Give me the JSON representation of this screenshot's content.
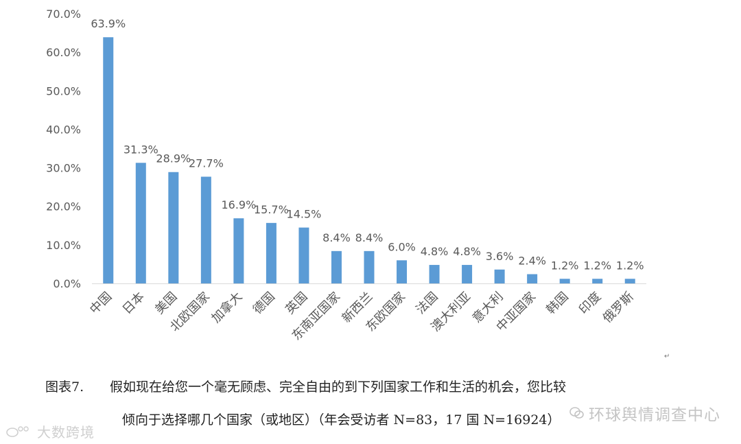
{
  "chart_data": {
    "type": "bar",
    "categories": [
      "中国",
      "日本",
      "美国",
      "北欧国家",
      "加拿大",
      "德国",
      "英国",
      "东南亚国家",
      "新西兰",
      "东欧国家",
      "法国",
      "澳大利亚",
      "意大利",
      "中亚国家",
      "韩国",
      "印度",
      "俄罗斯"
    ],
    "values": [
      63.9,
      31.3,
      28.9,
      27.7,
      16.9,
      15.7,
      14.5,
      8.4,
      8.4,
      6.0,
      4.8,
      4.8,
      3.6,
      2.4,
      1.2,
      1.2,
      1.2
    ],
    "data_labels": [
      "63.9%",
      "31.3%",
      "28.9%",
      "27.7%",
      "16.9%",
      "15.7%",
      "14.5%",
      "8.4%",
      "8.4%",
      "6.0%",
      "4.8%",
      "4.8%",
      "3.6%",
      "2.4%",
      "1.2%",
      "1.2%",
      "1.2%"
    ],
    "yticks": [
      "0.0%",
      "10.0%",
      "20.0%",
      "30.0%",
      "40.0%",
      "50.0%",
      "60.0%",
      "70.0%"
    ],
    "ylim": [
      0,
      70
    ],
    "grid": false,
    "legend": "none",
    "bar_color": "#5b9bd5"
  },
  "caption": {
    "label": "图表7.",
    "line1": "假如现在给您一个毫无顾虑、完全自由的到下列国家工作和生活的机会，您比较",
    "line2": "倾向于选择哪几个国家（或地区）（年会受访者 N=83，17 国 N=16924）"
  },
  "watermarks": {
    "right": "环球舆情调查中心",
    "right_icon": "wechat-icon",
    "left": "大数跨境",
    "left_icon": "weibo-icon"
  },
  "colors": {
    "bar": "#5b9bd5",
    "axis": "#d9d9d9",
    "text": "#595959"
  }
}
